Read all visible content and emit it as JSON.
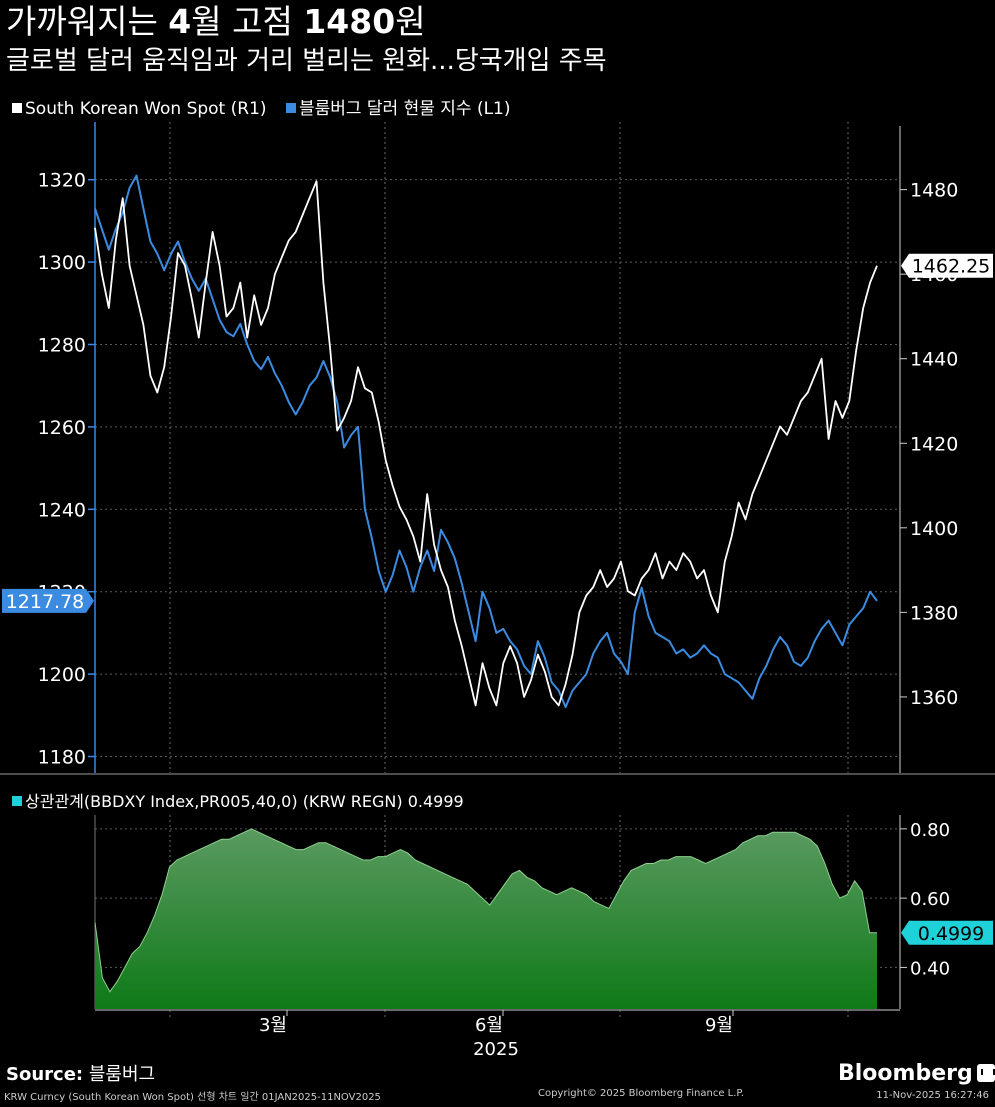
{
  "header": {
    "title_prefix": "가까워지는 ",
    "title_num1": "4",
    "title_mid": "월 고점 ",
    "title_num2": "1480",
    "title_suffix": "원",
    "subtitle": "글로벌 달러 움직임과 거리 벌리는 원화...당국개입 주목"
  },
  "legend_top": {
    "series1": "South Korean Won Spot (R1)",
    "series2": "블룸버그 달러 현물 지수 (L1)"
  },
  "legend_bottom": {
    "series": "상관관계(BBDXY Index,PR005,40,0) (KRW REGN) 0.4999"
  },
  "colors": {
    "krw": "#ffffff",
    "bbdxy": "#3b8be0",
    "corr_fill_top": "#5a9a60",
    "corr_fill_bottom": "#0f7a18",
    "corr_badge": "#1fd1d9",
    "bbdxy_badge": "#3b8be0"
  },
  "chart_data": [
    {
      "type": "line",
      "x_axis": {
        "month_ticks": [
          "3월",
          "6월",
          "9월"
        ],
        "year_label": "2025",
        "range": [
          "2025-01-02",
          "2025-11-11"
        ]
      },
      "left_axis": {
        "ticks": [
          1180,
          1200,
          1220,
          1240,
          1260,
          1280,
          1300,
          1320
        ],
        "range": [
          1176,
          1334
        ]
      },
      "right_axis": {
        "ticks": [
          1360,
          1380,
          1400,
          1420,
          1440,
          1460,
          1480
        ],
        "range": [
          1342,
          1496
        ]
      },
      "last_value_labels": {
        "krw": "1462.25",
        "bbdxy": "1217.78"
      },
      "series": [
        {
          "name": "South Korean Won Spot (R1)",
          "axis": "right",
          "values": [
            1471,
            1460,
            1452,
            1468,
            1478,
            1462,
            1455,
            1448,
            1436,
            1432,
            1438,
            1450,
            1465,
            1462,
            1454,
            1445,
            1458,
            1470,
            1462,
            1450,
            1452,
            1458,
            1445,
            1455,
            1448,
            1452,
            1460,
            1464,
            1468,
            1470,
            1474,
            1478,
            1482,
            1458,
            1442,
            1423,
            1426,
            1430,
            1438,
            1433,
            1432,
            1425,
            1416,
            1410,
            1405,
            1402,
            1398,
            1392,
            1408,
            1396,
            1390,
            1386,
            1378,
            1372,
            1365,
            1358,
            1368,
            1362,
            1358,
            1368,
            1372,
            1368,
            1360,
            1364,
            1370,
            1366,
            1360,
            1358,
            1363,
            1370,
            1380,
            1384,
            1386,
            1390,
            1386,
            1388,
            1392,
            1385,
            1384,
            1388,
            1390,
            1394,
            1388,
            1392,
            1390,
            1394,
            1392,
            1388,
            1390,
            1384,
            1380,
            1392,
            1398,
            1406,
            1402,
            1408,
            1412,
            1416,
            1420,
            1424,
            1422,
            1426,
            1430,
            1432,
            1436,
            1440,
            1421,
            1430,
            1426,
            1430,
            1442,
            1452,
            1458,
            1462
          ]
        },
        {
          "name": "블룸버그 달러 현물 지수 (L1)",
          "axis": "left",
          "values": [
            1313,
            1308,
            1303,
            1308,
            1312,
            1318,
            1321,
            1313,
            1305,
            1302,
            1298,
            1302,
            1305,
            1300,
            1296,
            1293,
            1296,
            1291,
            1286,
            1283,
            1282,
            1285,
            1280,
            1276,
            1274,
            1277,
            1273,
            1270,
            1266,
            1263,
            1266,
            1270,
            1272,
            1276,
            1272,
            1266,
            1255,
            1258,
            1260,
            1240,
            1233,
            1225,
            1220,
            1224,
            1230,
            1226,
            1220,
            1226,
            1230,
            1225,
            1235,
            1232,
            1228,
            1222,
            1215,
            1208,
            1220,
            1216,
            1210,
            1211,
            1208,
            1206,
            1202,
            1200,
            1208,
            1204,
            1198,
            1196,
            1192,
            1196,
            1198,
            1200,
            1205,
            1208,
            1210,
            1205,
            1203,
            1200,
            1215,
            1221,
            1214,
            1210,
            1209,
            1208,
            1205,
            1206,
            1204,
            1205,
            1207,
            1205,
            1204,
            1200,
            1199,
            1198,
            1196,
            1194,
            1199,
            1202,
            1206,
            1209,
            1207,
            1203,
            1202,
            1204,
            1208,
            1211,
            1213,
            1210,
            1207,
            1212,
            1214,
            1216,
            1220,
            1217.78
          ]
        }
      ]
    },
    {
      "type": "area",
      "name": "상관관계(BBDXY Index,PR005,40,0) (KRW REGN) 0.4999",
      "y_axis": {
        "ticks": [
          "0.40",
          "0.60",
          "0.80"
        ],
        "range": [
          0.28,
          0.84
        ]
      },
      "last_value_label": "0.4999",
      "values": [
        0.53,
        0.37,
        0.33,
        0.36,
        0.4,
        0.44,
        0.46,
        0.5,
        0.55,
        0.61,
        0.69,
        0.71,
        0.72,
        0.73,
        0.74,
        0.75,
        0.76,
        0.77,
        0.77,
        0.78,
        0.79,
        0.8,
        0.79,
        0.78,
        0.77,
        0.76,
        0.75,
        0.74,
        0.74,
        0.75,
        0.76,
        0.76,
        0.75,
        0.74,
        0.73,
        0.72,
        0.71,
        0.71,
        0.72,
        0.72,
        0.73,
        0.74,
        0.73,
        0.71,
        0.7,
        0.69,
        0.68,
        0.67,
        0.66,
        0.65,
        0.64,
        0.62,
        0.6,
        0.58,
        0.61,
        0.64,
        0.67,
        0.68,
        0.66,
        0.65,
        0.63,
        0.62,
        0.61,
        0.62,
        0.63,
        0.62,
        0.61,
        0.59,
        0.58,
        0.57,
        0.61,
        0.65,
        0.68,
        0.69,
        0.7,
        0.7,
        0.71,
        0.71,
        0.72,
        0.72,
        0.72,
        0.71,
        0.7,
        0.71,
        0.72,
        0.73,
        0.74,
        0.76,
        0.77,
        0.78,
        0.78,
        0.79,
        0.79,
        0.79,
        0.79,
        0.78,
        0.77,
        0.75,
        0.7,
        0.64,
        0.6,
        0.61,
        0.65,
        0.62,
        0.5,
        0.5
      ]
    }
  ],
  "source": {
    "label": "Source:",
    "value": "블룸버그"
  },
  "footer": {
    "description": "KRW Curncy (South Korean Won Spot) 선형 차트 일간 01JAN2025-11NOV2025",
    "copyright": "Copyright© 2025 Bloomberg Finance L.P.",
    "timestamp": "11-Nov-2025 16:27:46",
    "brand": "Bloomberg"
  }
}
